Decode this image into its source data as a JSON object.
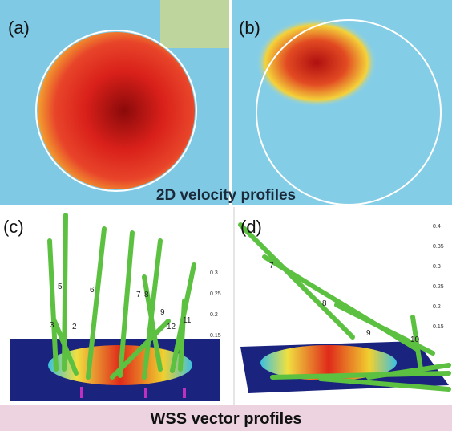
{
  "panels": [
    {
      "label": "(a)"
    },
    {
      "label": "(b)"
    },
    {
      "label": "(c)",
      "axis_ticks": [
        "0.3",
        "0.25",
        "0.2",
        "0.15"
      ],
      "markers": [
        "5",
        "6",
        "7",
        "8",
        "9",
        "12",
        "11",
        "3",
        "2"
      ]
    },
    {
      "label": "(d)",
      "axis_ticks": [
        "0.4",
        "0.35",
        "0.3",
        "0.25",
        "0.2",
        "0.15"
      ],
      "markers": [
        "7",
        "8",
        "9",
        "10"
      ]
    }
  ],
  "captions": {
    "top": "2D velocity profiles",
    "bottom": "WSS vector profiles"
  }
}
